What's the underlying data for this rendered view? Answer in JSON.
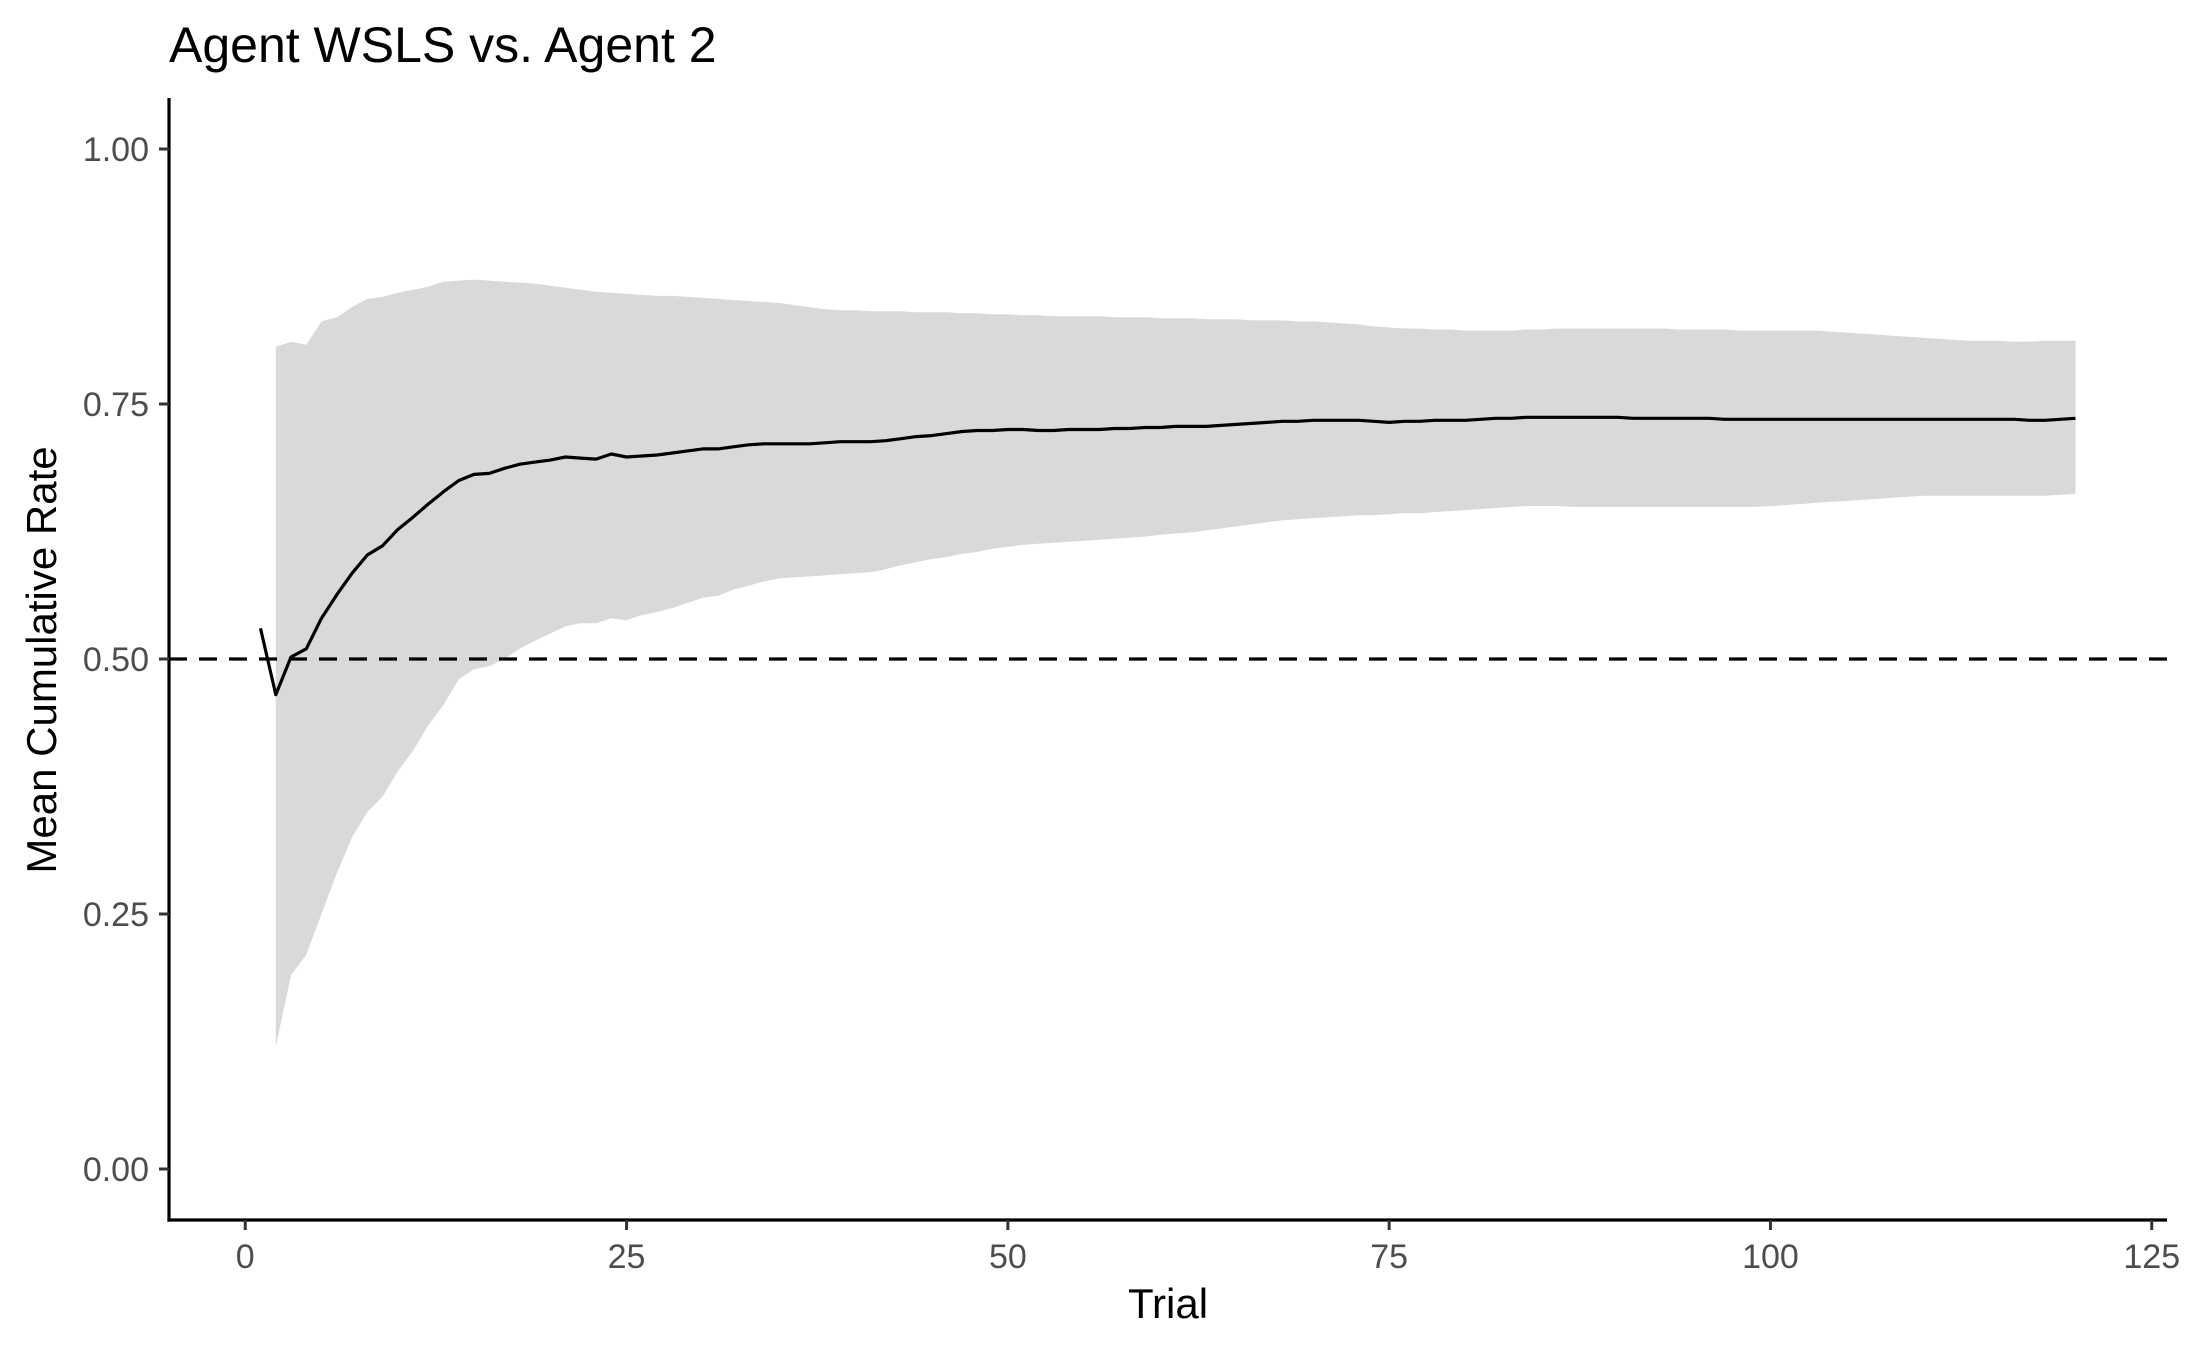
{
  "chart_data": {
    "type": "line",
    "title": "Agent WSLS vs. Agent 2",
    "xlabel": "Trial",
    "ylabel": "Mean Cumulative Rate",
    "xlim": [
      -5,
      126
    ],
    "ylim": [
      -0.05,
      1.05
    ],
    "x_ticks": [
      0,
      25,
      50,
      75,
      100,
      125
    ],
    "x_tick_labels": [
      "0",
      "25",
      "50",
      "75",
      "100",
      "125"
    ],
    "y_ticks": [
      0,
      0.25,
      0.5,
      0.75,
      1.0
    ],
    "y_tick_labels": [
      "0.00",
      "0.25",
      "0.50",
      "0.75",
      "1.00"
    ],
    "reference_line": {
      "y": 0.5,
      "style": "dashed"
    },
    "grid": false,
    "series": [
      {
        "type": "line",
        "color": "#000000",
        "x": [
          1,
          2,
          3,
          4,
          5,
          6,
          7,
          8,
          9,
          10,
          11,
          12,
          13,
          14,
          15,
          16,
          17,
          18,
          19,
          20,
          21,
          22,
          23,
          24,
          25,
          26,
          27,
          28,
          29,
          30,
          31,
          32,
          33,
          34,
          35,
          36,
          37,
          38,
          39,
          40,
          41,
          42,
          43,
          44,
          45,
          46,
          47,
          48,
          49,
          50,
          51,
          52,
          53,
          54,
          55,
          56,
          57,
          58,
          59,
          60,
          61,
          62,
          63,
          64,
          65,
          66,
          67,
          68,
          69,
          70,
          71,
          72,
          73,
          74,
          75,
          76,
          77,
          78,
          79,
          80,
          81,
          82,
          83,
          84,
          85,
          86,
          87,
          88,
          89,
          90,
          91,
          92,
          93,
          94,
          95,
          96,
          97,
          98,
          99,
          100,
          101,
          102,
          103,
          104,
          105,
          106,
          107,
          108,
          109,
          110,
          111,
          112,
          113,
          114,
          115,
          116,
          117,
          118,
          119,
          120
        ],
        "y": [
          0.53,
          0.465,
          0.502,
          0.51,
          0.54,
          0.563,
          0.584,
          0.602,
          0.611,
          0.627,
          0.639,
          0.652,
          0.664,
          0.675,
          0.681,
          0.682,
          0.687,
          0.691,
          0.693,
          0.695,
          0.698,
          0.697,
          0.696,
          0.701,
          0.698,
          0.699,
          0.7,
          0.702,
          0.704,
          0.706,
          0.706,
          0.708,
          0.71,
          0.711,
          0.711,
          0.711,
          0.711,
          0.712,
          0.713,
          0.713,
          0.713,
          0.714,
          0.716,
          0.718,
          0.719,
          0.721,
          0.723,
          0.724,
          0.724,
          0.725,
          0.725,
          0.724,
          0.724,
          0.725,
          0.725,
          0.725,
          0.726,
          0.726,
          0.727,
          0.727,
          0.728,
          0.728,
          0.728,
          0.729,
          0.73,
          0.731,
          0.732,
          0.733,
          0.733,
          0.734,
          0.734,
          0.734,
          0.734,
          0.733,
          0.732,
          0.733,
          0.733,
          0.734,
          0.734,
          0.734,
          0.735,
          0.736,
          0.736,
          0.737,
          0.737,
          0.737,
          0.737,
          0.737,
          0.737,
          0.737,
          0.736,
          0.736,
          0.736,
          0.736,
          0.736,
          0.736,
          0.735,
          0.735,
          0.735,
          0.735,
          0.735,
          0.735,
          0.735,
          0.735,
          0.735,
          0.735,
          0.735,
          0.735,
          0.735,
          0.735,
          0.735,
          0.735,
          0.735,
          0.735,
          0.735,
          0.735,
          0.734,
          0.734,
          0.735,
          0.736
        ]
      },
      {
        "type": "ribbon",
        "color": "#d9d9d9",
        "x": [
          2,
          3,
          4,
          5,
          6,
          7,
          8,
          9,
          10,
          11,
          12,
          13,
          14,
          15,
          16,
          17,
          18,
          19,
          20,
          21,
          22,
          23,
          24,
          25,
          26,
          27,
          28,
          29,
          30,
          31,
          32,
          33,
          34,
          35,
          36,
          37,
          38,
          39,
          40,
          41,
          42,
          43,
          44,
          45,
          46,
          47,
          48,
          49,
          50,
          51,
          52,
          53,
          54,
          55,
          56,
          57,
          58,
          59,
          60,
          61,
          62,
          63,
          64,
          65,
          66,
          67,
          68,
          69,
          70,
          71,
          72,
          73,
          74,
          75,
          76,
          77,
          78,
          79,
          80,
          81,
          82,
          83,
          84,
          85,
          86,
          87,
          88,
          89,
          90,
          91,
          92,
          93,
          94,
          95,
          96,
          97,
          98,
          99,
          100,
          101,
          102,
          103,
          104,
          105,
          106,
          107,
          108,
          109,
          110,
          111,
          112,
          113,
          114,
          115,
          116,
          117,
          118,
          119,
          120
        ],
        "lower": [
          0.12,
          0.19,
          0.21,
          0.25,
          0.29,
          0.325,
          0.35,
          0.365,
          0.39,
          0.41,
          0.435,
          0.455,
          0.48,
          0.49,
          0.493,
          0.5,
          0.51,
          0.518,
          0.525,
          0.532,
          0.535,
          0.535,
          0.54,
          0.538,
          0.543,
          0.546,
          0.55,
          0.555,
          0.56,
          0.562,
          0.568,
          0.572,
          0.576,
          0.579,
          0.58,
          0.581,
          0.582,
          0.583,
          0.584,
          0.585,
          0.588,
          0.592,
          0.595,
          0.598,
          0.6,
          0.603,
          0.605,
          0.608,
          0.61,
          0.612,
          0.613,
          0.614,
          0.615,
          0.616,
          0.617,
          0.618,
          0.619,
          0.62,
          0.622,
          0.623,
          0.624,
          0.626,
          0.628,
          0.63,
          0.632,
          0.634,
          0.636,
          0.637,
          0.638,
          0.639,
          0.64,
          0.641,
          0.641,
          0.642,
          0.643,
          0.643,
          0.644,
          0.645,
          0.646,
          0.647,
          0.648,
          0.649,
          0.65,
          0.65,
          0.65,
          0.649,
          0.649,
          0.649,
          0.649,
          0.649,
          0.649,
          0.649,
          0.649,
          0.649,
          0.649,
          0.649,
          0.649,
          0.649,
          0.65,
          0.651,
          0.652,
          0.653,
          0.654,
          0.655,
          0.656,
          0.657,
          0.658,
          0.659,
          0.66,
          0.66,
          0.66,
          0.66,
          0.66,
          0.66,
          0.66,
          0.66,
          0.66,
          0.661,
          0.662
        ],
        "upper": [
          0.806,
          0.811,
          0.808,
          0.831,
          0.835,
          0.845,
          0.853,
          0.855,
          0.859,
          0.862,
          0.865,
          0.87,
          0.871,
          0.872,
          0.871,
          0.87,
          0.869,
          0.868,
          0.866,
          0.864,
          0.862,
          0.86,
          0.859,
          0.858,
          0.857,
          0.856,
          0.856,
          0.855,
          0.854,
          0.853,
          0.852,
          0.851,
          0.85,
          0.849,
          0.847,
          0.845,
          0.843,
          0.842,
          0.842,
          0.841,
          0.841,
          0.841,
          0.84,
          0.84,
          0.84,
          0.839,
          0.839,
          0.838,
          0.838,
          0.837,
          0.837,
          0.836,
          0.836,
          0.836,
          0.836,
          0.835,
          0.835,
          0.835,
          0.834,
          0.834,
          0.834,
          0.833,
          0.833,
          0.833,
          0.832,
          0.832,
          0.832,
          0.831,
          0.831,
          0.83,
          0.829,
          0.828,
          0.826,
          0.825,
          0.824,
          0.824,
          0.823,
          0.823,
          0.822,
          0.822,
          0.822,
          0.822,
          0.823,
          0.823,
          0.824,
          0.824,
          0.824,
          0.824,
          0.824,
          0.824,
          0.824,
          0.824,
          0.823,
          0.823,
          0.823,
          0.823,
          0.822,
          0.822,
          0.822,
          0.822,
          0.822,
          0.822,
          0.821,
          0.82,
          0.819,
          0.818,
          0.817,
          0.816,
          0.815,
          0.814,
          0.813,
          0.812,
          0.812,
          0.812,
          0.811,
          0.811,
          0.812,
          0.812,
          0.812
        ]
      }
    ]
  }
}
